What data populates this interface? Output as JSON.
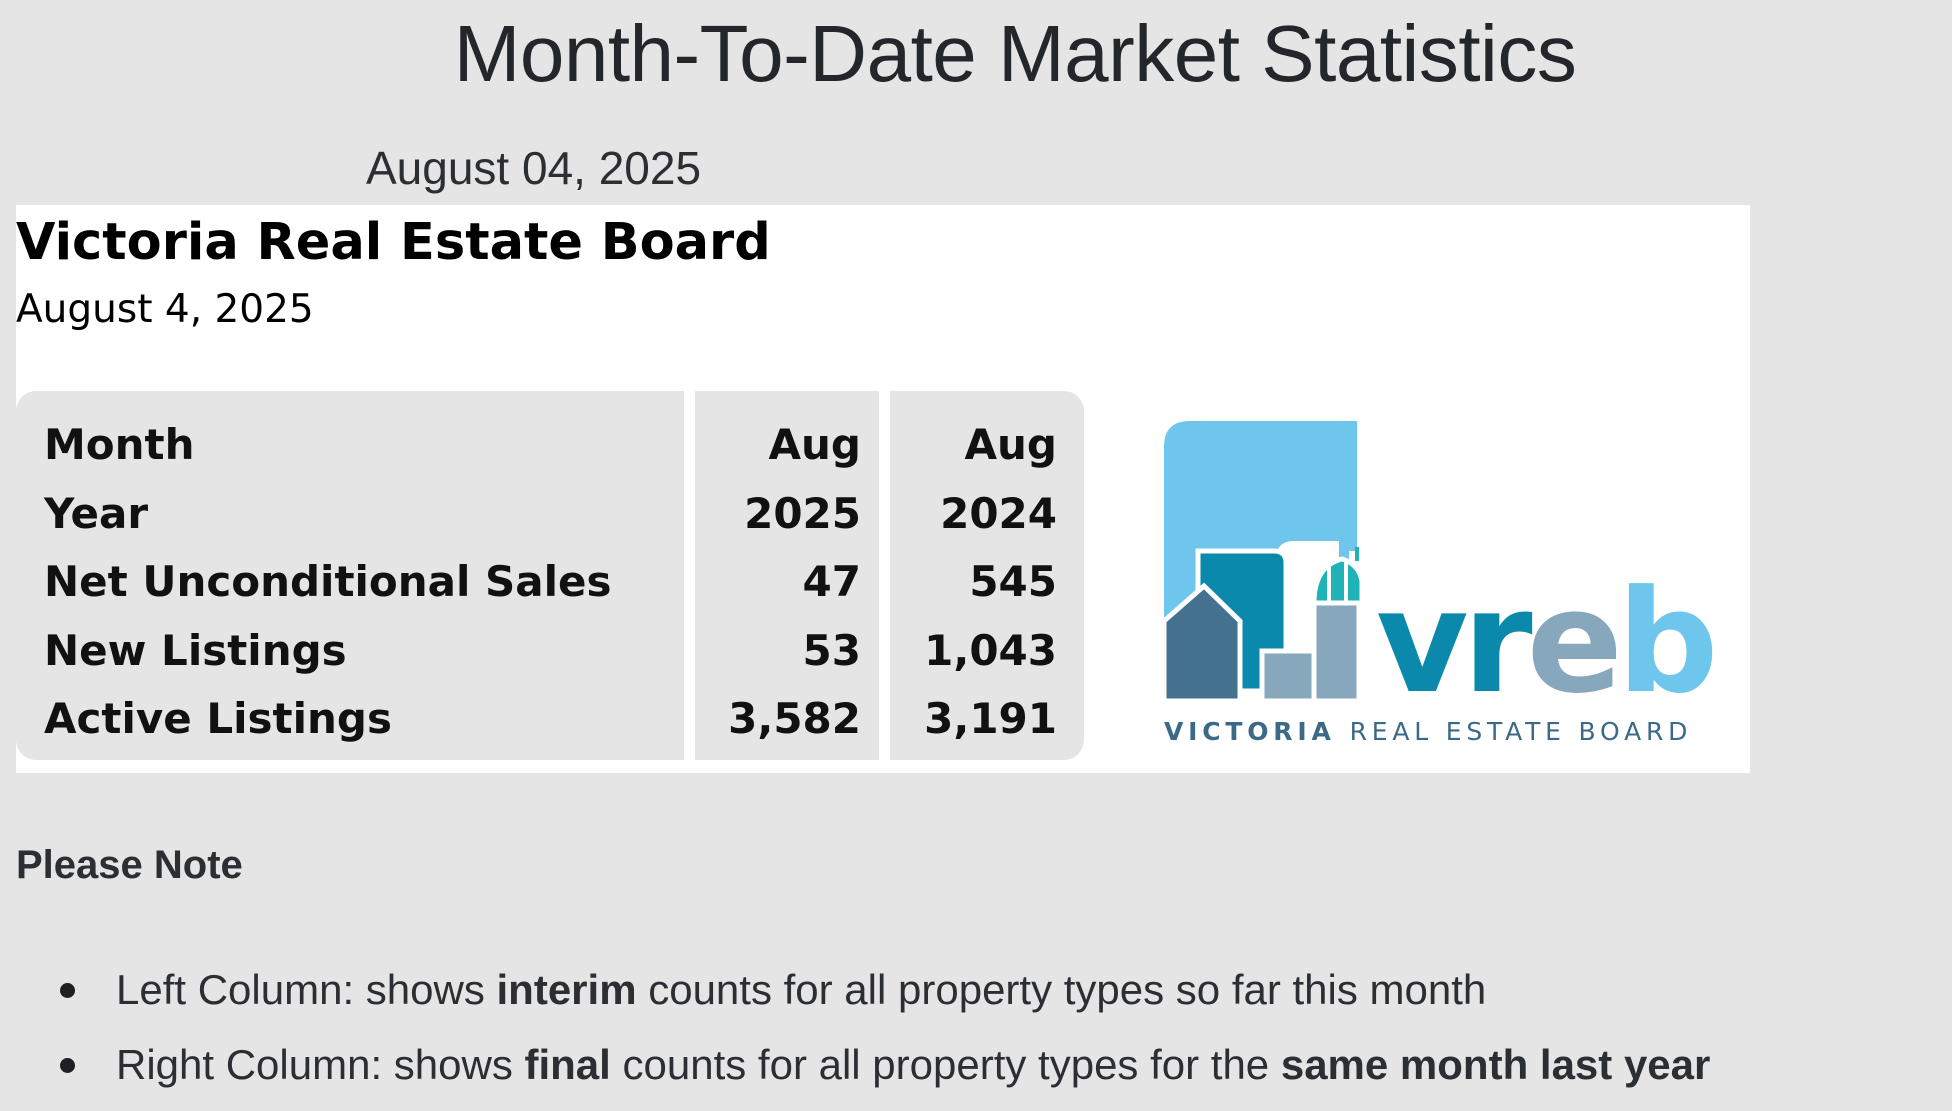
{
  "header": {
    "title": "Month-To-Date Market Statistics",
    "date": "August 04, 2025"
  },
  "board": {
    "name": "Victoria Real Estate Board",
    "date": "August 4, 2025"
  },
  "stats_table": {
    "labels": [
      "Month",
      "Year",
      "Net Unconditional Sales",
      "New Listings",
      "Active Listings"
    ],
    "current_column": [
      "Aug",
      "2025",
      "47",
      "53",
      "3,582"
    ],
    "prior_column": [
      "Aug",
      "2024",
      "545",
      "1,043",
      "3,191"
    ]
  },
  "logo": {
    "wordmark": "vreb",
    "tagline_bold": "VICTORIA",
    "tagline_rest": "REAL ESTATE BOARD",
    "colors": {
      "sky": "#6ec6ec",
      "teal": "#0b89ad",
      "slate": "#44728e",
      "steel": "#87a7bc",
      "aqua": "#21b2b8",
      "text_dark": "#3b6a88"
    }
  },
  "note": {
    "title": "Please Note",
    "items": [
      {
        "prefix": "Left Column: shows ",
        "bold": "interim",
        "suffix": " counts for all property types so far this month",
        "bold2": ""
      },
      {
        "prefix": "Right Column: shows ",
        "bold": "final",
        "suffix": " counts for all property types for the ",
        "bold2": "same month last year"
      }
    ]
  }
}
